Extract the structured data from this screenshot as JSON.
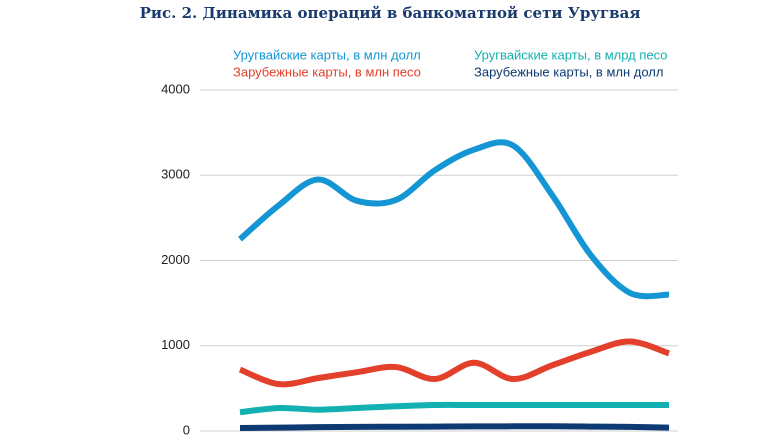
{
  "chart_data": {
    "type": "line",
    "title": "Рис. 2. Динамика операций в банкоматной сети Уругвая",
    "categories": [
      null,
      null,
      null,
      null,
      null,
      null,
      null,
      null,
      null,
      null,
      null,
      null
    ],
    "series": [
      {
        "name": "Уругвайские карты, в млн долл",
        "color": "#1496d4",
        "values": [
          2250,
          2650,
          2950,
          2700,
          2710,
          3060,
          3300,
          3350,
          2770,
          2060,
          1620,
          1600
        ]
      },
      {
        "name": "Зарубежные карты, в млн песо",
        "color": "#e2402a",
        "values": [
          720,
          550,
          620,
          690,
          750,
          610,
          800,
          610,
          770,
          930,
          1050,
          910
        ]
      },
      {
        "name": "Уругвайские карты, в млрд песо",
        "color": "#12b0b0",
        "values": [
          220,
          270,
          250,
          270,
          290,
          305,
          305,
          305,
          305,
          305,
          305,
          305
        ]
      },
      {
        "name": "Зарубежные карты, в млн долл",
        "color": "#0d3a72",
        "values": [
          35,
          40,
          45,
          48,
          50,
          52,
          54,
          55,
          55,
          52,
          48,
          40
        ]
      }
    ],
    "ylim": [
      0,
      4000
    ],
    "yticks": [
      0,
      1000,
      2000,
      3000,
      4000
    ],
    "grid": true
  }
}
